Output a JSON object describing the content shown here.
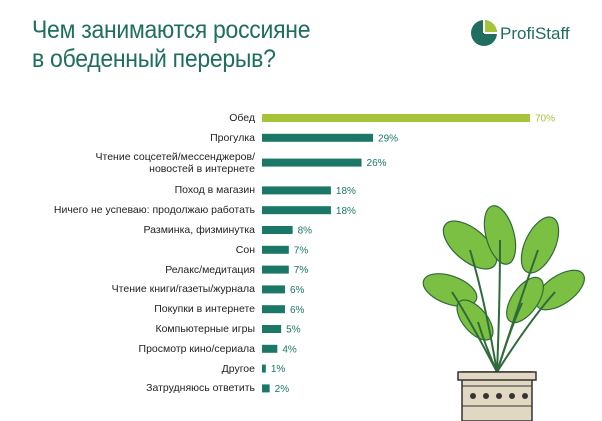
{
  "chart_data": {
    "type": "bar",
    "orientation": "horizontal",
    "title": "Чем занимаются россияне\nв обеденный перерыв?",
    "logo": "ProfiStaff",
    "categories": [
      "Обед",
      "Прогулка",
      "Чтение соцсетей/мессенджеров/\nновостей в интернете",
      "Поход в магазин",
      "Ничего не успеваю: продолжаю работать",
      "Разминка, физминутка",
      "Сон",
      "Релакс/медитация",
      "Чтение книги/газеты/журнала",
      "Покупки в интернете",
      "Компьютерные игры",
      "Просмотр кино/сериала",
      "Другое",
      "Затрудняюсь ответить"
    ],
    "values": [
      70,
      29,
      26,
      18,
      18,
      8,
      7,
      7,
      6,
      6,
      5,
      4,
      1,
      2
    ],
    "value_labels": [
      "70%",
      "29%",
      "26%",
      "18%",
      "18%",
      "8%",
      "7%",
      "7%",
      "6%",
      "6%",
      "5%",
      "4%",
      "1%",
      "2%"
    ],
    "colors": [
      "#a5c43a",
      "#1b7866",
      "#1b7866",
      "#1b7866",
      "#1b7866",
      "#1b7866",
      "#1b7866",
      "#1b7866",
      "#1b7866",
      "#1b7866",
      "#1b7866",
      "#1b7866",
      "#1b7866",
      "#1b7866"
    ]
  }
}
